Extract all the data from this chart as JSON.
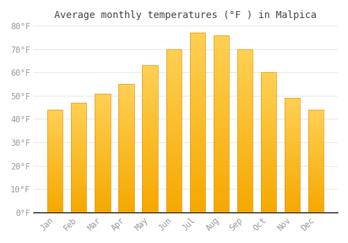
{
  "months": [
    "Jan",
    "Feb",
    "Mar",
    "Apr",
    "May",
    "Jun",
    "Jul",
    "Aug",
    "Sep",
    "Oct",
    "Nov",
    "Dec"
  ],
  "values": [
    44,
    47,
    51,
    55,
    63,
    70,
    77,
    76,
    70,
    60,
    49,
    44
  ],
  "bar_color_top": "#FFC93C",
  "bar_color_bottom": "#F5A800",
  "bar_edge_color": "#E09000",
  "title": "Average monthly temperatures (°F ) in Malpica",
  "ylim": [
    0,
    80
  ],
  "ytick_interval": 10,
  "background_color": "#FFFFFF",
  "grid_color": "#E8E8E8",
  "title_fontsize": 10,
  "tick_fontsize": 8.5,
  "font_family": "monospace",
  "tick_color": "#999999",
  "spine_color": "#000000",
  "bar_width": 0.65
}
